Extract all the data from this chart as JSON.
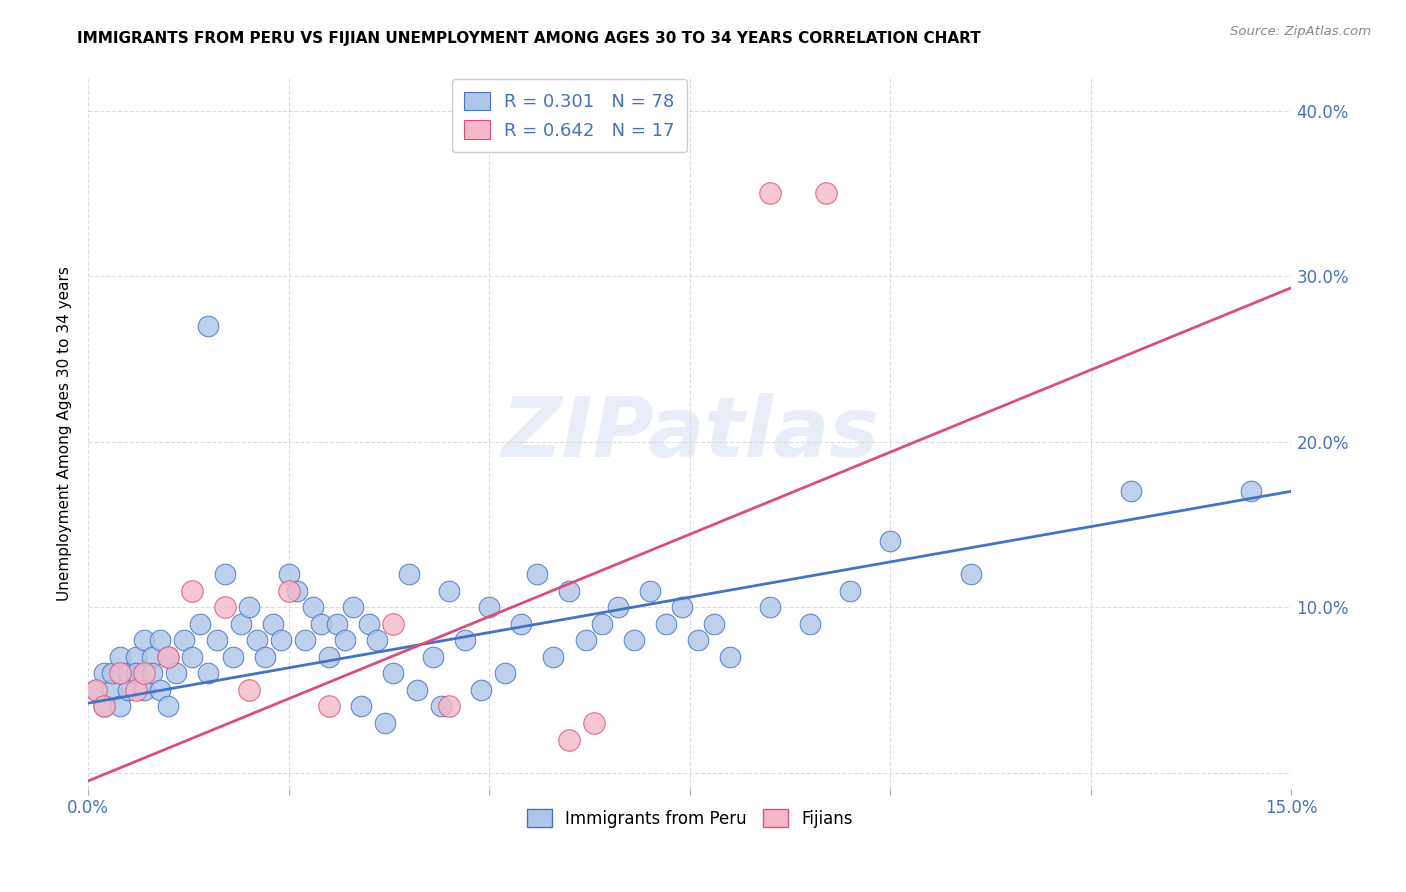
{
  "title": "IMMIGRANTS FROM PERU VS FIJIAN UNEMPLOYMENT AMONG AGES 30 TO 34 YEARS CORRELATION CHART",
  "source": "Source: ZipAtlas.com",
  "ylabel": "Unemployment Among Ages 30 to 34 years",
  "xlim": [
    0.0,
    0.15
  ],
  "ylim": [
    -0.01,
    0.42
  ],
  "x_tick_positions": [
    0.0,
    0.025,
    0.05,
    0.075,
    0.1,
    0.125,
    0.15
  ],
  "x_tick_labels": [
    "0.0%",
    "",
    "",
    "",
    "",
    "",
    "15.0%"
  ],
  "y_tick_positions": [
    0.0,
    0.1,
    0.2,
    0.3,
    0.4
  ],
  "y_tick_labels_right": [
    "",
    "10.0%",
    "20.0%",
    "30.0%",
    "40.0%"
  ],
  "peru_fill_color": "#aec6e8",
  "peru_edge_color": "#4472c4",
  "fijian_fill_color": "#f4b8c8",
  "fijian_edge_color": "#d94f7a",
  "peru_line_color": "#4472c4",
  "fijian_line_color": "#d94f7a",
  "tick_color": "#4472c4",
  "R_peru": 0.301,
  "N_peru": 78,
  "R_fijian": 0.642,
  "N_fijian": 17,
  "watermark": "ZIPatlas",
  "peru_x": [
    0.001,
    0.002,
    0.002,
    0.003,
    0.003,
    0.004,
    0.004,
    0.005,
    0.005,
    0.006,
    0.006,
    0.007,
    0.007,
    0.008,
    0.008,
    0.009,
    0.009,
    0.01,
    0.01,
    0.011,
    0.012,
    0.013,
    0.014,
    0.015,
    0.015,
    0.016,
    0.017,
    0.018,
    0.019,
    0.02,
    0.021,
    0.022,
    0.023,
    0.024,
    0.025,
    0.026,
    0.027,
    0.028,
    0.029,
    0.03,
    0.031,
    0.032,
    0.033,
    0.034,
    0.035,
    0.036,
    0.037,
    0.038,
    0.04,
    0.041,
    0.043,
    0.044,
    0.045,
    0.047,
    0.049,
    0.05,
    0.052,
    0.054,
    0.056,
    0.058,
    0.06,
    0.062,
    0.064,
    0.066,
    0.068,
    0.07,
    0.072,
    0.074,
    0.076,
    0.078,
    0.08,
    0.085,
    0.09,
    0.095,
    0.1,
    0.11,
    0.13,
    0.145
  ],
  "peru_y": [
    0.05,
    0.04,
    0.06,
    0.05,
    0.06,
    0.04,
    0.07,
    0.06,
    0.05,
    0.07,
    0.06,
    0.05,
    0.08,
    0.07,
    0.06,
    0.05,
    0.08,
    0.07,
    0.04,
    0.06,
    0.08,
    0.07,
    0.09,
    0.27,
    0.06,
    0.08,
    0.12,
    0.07,
    0.09,
    0.1,
    0.08,
    0.07,
    0.09,
    0.08,
    0.12,
    0.11,
    0.08,
    0.1,
    0.09,
    0.07,
    0.09,
    0.08,
    0.1,
    0.04,
    0.09,
    0.08,
    0.03,
    0.06,
    0.12,
    0.05,
    0.07,
    0.04,
    0.11,
    0.08,
    0.05,
    0.1,
    0.06,
    0.09,
    0.12,
    0.07,
    0.11,
    0.08,
    0.09,
    0.1,
    0.08,
    0.11,
    0.09,
    0.1,
    0.08,
    0.09,
    0.07,
    0.1,
    0.09,
    0.11,
    0.14,
    0.12,
    0.17,
    0.17
  ],
  "fijian_x": [
    0.001,
    0.002,
    0.004,
    0.006,
    0.007,
    0.01,
    0.013,
    0.017,
    0.02,
    0.025,
    0.03,
    0.038,
    0.045,
    0.06,
    0.063,
    0.085,
    0.092
  ],
  "fijian_y": [
    0.05,
    0.04,
    0.06,
    0.05,
    0.06,
    0.07,
    0.11,
    0.1,
    0.05,
    0.11,
    0.04,
    0.09,
    0.04,
    0.02,
    0.03,
    0.35,
    0.35
  ],
  "peru_trend_x": [
    0.0,
    0.15
  ],
  "peru_trend_y": [
    0.042,
    0.17
  ],
  "fijian_trend_x": [
    0.0,
    0.15
  ],
  "fijian_trend_y": [
    -0.005,
    0.293
  ]
}
